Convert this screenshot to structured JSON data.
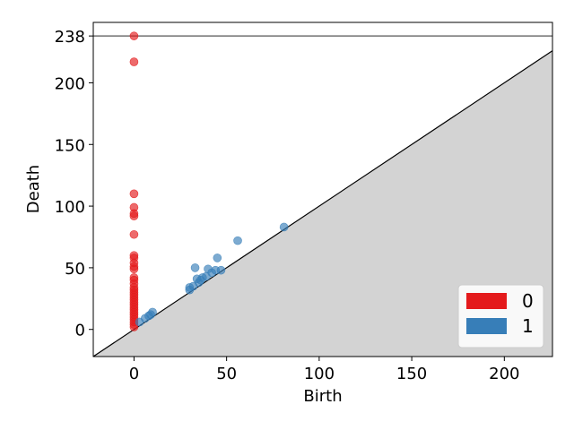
{
  "chart_data": {
    "type": "scatter",
    "title": "",
    "xlabel": "Birth",
    "ylabel": "Death",
    "xlim": [
      -22,
      226
    ],
    "ylim": [
      -22,
      249
    ],
    "xticks": [
      0,
      50,
      100,
      150,
      200
    ],
    "yticks": [
      0,
      50,
      100,
      150,
      200,
      238
    ],
    "infinity_value": 238,
    "diagonal": true,
    "grid": false,
    "legend_position": "bottom-right",
    "series": [
      {
        "name": "0",
        "color": "#e41a1c",
        "points": [
          [
            0,
            238
          ],
          [
            0,
            217
          ],
          [
            0,
            110
          ],
          [
            0,
            99
          ],
          [
            0,
            94
          ],
          [
            0,
            92
          ],
          [
            0,
            77
          ],
          [
            0,
            60
          ],
          [
            0,
            58
          ],
          [
            0,
            54
          ],
          [
            0,
            51
          ],
          [
            0,
            49
          ],
          [
            0,
            42
          ],
          [
            0,
            40
          ],
          [
            0,
            37
          ],
          [
            0,
            34
          ],
          [
            0,
            32
          ],
          [
            0,
            30
          ],
          [
            0,
            28
          ],
          [
            0,
            26
          ],
          [
            0,
            24
          ],
          [
            0,
            22
          ],
          [
            0,
            20
          ],
          [
            0,
            18
          ],
          [
            0,
            16
          ],
          [
            0,
            14
          ],
          [
            0,
            12
          ],
          [
            0,
            10
          ],
          [
            0,
            8
          ],
          [
            0,
            6
          ],
          [
            0,
            4
          ],
          [
            0,
            2
          ]
        ]
      },
      {
        "name": "1",
        "color": "#377eb8",
        "points": [
          [
            3,
            6
          ],
          [
            6,
            9
          ],
          [
            8,
            11
          ],
          [
            9,
            12
          ],
          [
            10,
            14
          ],
          [
            30,
            32
          ],
          [
            30,
            34
          ],
          [
            32,
            35
          ],
          [
            33,
            50
          ],
          [
            34,
            41
          ],
          [
            35,
            38
          ],
          [
            36,
            40
          ],
          [
            37,
            42
          ],
          [
            39,
            43
          ],
          [
            40,
            49
          ],
          [
            42,
            46
          ],
          [
            44,
            48
          ],
          [
            45,
            58
          ],
          [
            47,
            48
          ],
          [
            56,
            72
          ],
          [
            81,
            83
          ]
        ]
      }
    ]
  }
}
